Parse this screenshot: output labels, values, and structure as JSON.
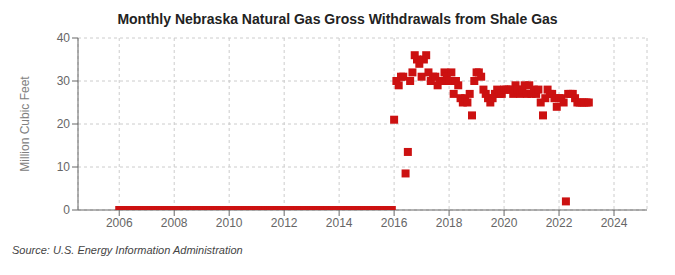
{
  "chart_data": {
    "type": "scatter",
    "title": "Monthly Nebraska Natural Gas Gross Withdrawals from Shale Gas",
    "ylabel": "Million Cubic Feet",
    "source": "Source: U.S. Energy Information Administration",
    "color": "#cc1111",
    "marker": "square",
    "grid": true,
    "xlim": [
      2004.5,
      2025.2
    ],
    "xticks": [
      2006,
      2008,
      2010,
      2012,
      2014,
      2016,
      2018,
      2020,
      2022,
      2024
    ],
    "ylim": [
      0,
      40
    ],
    "yticks": [
      0,
      10,
      20,
      30,
      40
    ],
    "x": [
      2006.0,
      2006.083,
      2006.167,
      2006.25,
      2006.333,
      2006.417,
      2006.5,
      2006.583,
      2006.667,
      2006.75,
      2006.833,
      2006.917,
      2007.0,
      2007.083,
      2007.167,
      2007.25,
      2007.333,
      2007.417,
      2007.5,
      2007.583,
      2007.667,
      2007.75,
      2007.833,
      2007.917,
      2008.0,
      2008.083,
      2008.167,
      2008.25,
      2008.333,
      2008.417,
      2008.5,
      2008.583,
      2008.667,
      2008.75,
      2008.833,
      2008.917,
      2009.0,
      2009.083,
      2009.167,
      2009.25,
      2009.333,
      2009.417,
      2009.5,
      2009.583,
      2009.667,
      2009.75,
      2009.833,
      2009.917,
      2010.0,
      2010.083,
      2010.167,
      2010.25,
      2010.333,
      2010.417,
      2010.5,
      2010.583,
      2010.667,
      2010.75,
      2010.833,
      2010.917,
      2011.0,
      2011.083,
      2011.167,
      2011.25,
      2011.333,
      2011.417,
      2011.5,
      2011.583,
      2011.667,
      2011.75,
      2011.833,
      2011.917,
      2012.0,
      2012.083,
      2012.167,
      2012.25,
      2012.333,
      2012.417,
      2012.5,
      2012.583,
      2012.667,
      2012.75,
      2012.833,
      2012.917,
      2013.0,
      2013.083,
      2013.167,
      2013.25,
      2013.333,
      2013.417,
      2013.5,
      2013.583,
      2013.667,
      2013.75,
      2013.833,
      2013.917,
      2014.0,
      2014.083,
      2014.167,
      2014.25,
      2014.333,
      2014.417,
      2014.5,
      2014.583,
      2014.667,
      2014.75,
      2014.833,
      2014.917,
      2015.0,
      2015.083,
      2015.167,
      2015.25,
      2015.333,
      2015.417,
      2015.5,
      2015.583,
      2015.667,
      2015.75,
      2015.833,
      2015.917,
      2016.0,
      2016.083,
      2016.167,
      2016.25,
      2016.333,
      2016.417,
      2016.5,
      2016.583,
      2016.667,
      2016.75,
      2016.833,
      2016.917,
      2017.0,
      2017.083,
      2017.167,
      2017.25,
      2017.333,
      2017.417,
      2017.5,
      2017.583,
      2017.667,
      2017.75,
      2017.833,
      2017.917,
      2018.0,
      2018.083,
      2018.167,
      2018.25,
      2018.333,
      2018.417,
      2018.5,
      2018.583,
      2018.667,
      2018.75,
      2018.833,
      2018.917,
      2019.0,
      2019.083,
      2019.167,
      2019.25,
      2019.333,
      2019.417,
      2019.5,
      2019.583,
      2019.667,
      2019.75,
      2019.833,
      2019.917,
      2020.0,
      2020.083,
      2020.167,
      2020.25,
      2020.333,
      2020.417,
      2020.5,
      2020.583,
      2020.667,
      2020.75,
      2020.833,
      2020.917,
      2021.0,
      2021.083,
      2021.167,
      2021.25,
      2021.333,
      2021.417,
      2021.5,
      2021.583,
      2021.667,
      2021.75,
      2021.833,
      2021.917,
      2022.0,
      2022.083,
      2022.167,
      2022.25,
      2022.333,
      2022.417,
      2022.5,
      2022.583,
      2022.667,
      2022.75,
      2022.833,
      2022.917,
      2023.0,
      2023.083
    ],
    "values": [
      0.0,
      0.0,
      0.0,
      0.0,
      0.0,
      0.0,
      0.0,
      0.0,
      0.0,
      0.0,
      0.0,
      0.0,
      0.0,
      0.0,
      0.0,
      0.0,
      0.0,
      0.0,
      0.0,
      0.0,
      0.0,
      0.0,
      0.0,
      0.0,
      0.0,
      0.0,
      0.0,
      0.0,
      0.0,
      0.0,
      0.0,
      0.0,
      0.0,
      0.0,
      0.0,
      0.0,
      0.0,
      0.0,
      0.0,
      0.0,
      0.0,
      0.0,
      0.0,
      0.0,
      0.0,
      0.0,
      0.0,
      0.0,
      0.0,
      0.0,
      0.0,
      0.0,
      0.0,
      0.0,
      0.0,
      0.0,
      0.0,
      0.0,
      0.0,
      0.0,
      0.0,
      0.0,
      0.0,
      0.0,
      0.0,
      0.0,
      0.0,
      0.0,
      0.0,
      0.0,
      0.0,
      0.0,
      0.0,
      0.0,
      0.0,
      0.0,
      0.0,
      0.0,
      0.0,
      0.0,
      0.0,
      0.0,
      0.0,
      0.0,
      0.0,
      0.0,
      0.0,
      0.0,
      0.0,
      0.0,
      0.0,
      0.0,
      0.0,
      0.0,
      0.0,
      0.0,
      0.0,
      0.0,
      0.0,
      0.0,
      0.0,
      0.0,
      0.0,
      0.0,
      0.0,
      0.0,
      0.0,
      0.0,
      0.0,
      0.0,
      0.0,
      0.0,
      0.0,
      0.0,
      0.0,
      0.0,
      0.0,
      0.0,
      0.0,
      0.0,
      21.0,
      30.0,
      29.0,
      31.0,
      31.0,
      8.5,
      13.5,
      30.0,
      32.0,
      36.0,
      35.0,
      34.0,
      31.0,
      35.0,
      36.0,
      32.0,
      30.0,
      31.0,
      31.0,
      29.0,
      30.0,
      30.0,
      32.0,
      31.0,
      30.0,
      32.0,
      27.0,
      30.0,
      29.0,
      26.0,
      25.0,
      26.0,
      25.0,
      27.0,
      22.0,
      30.0,
      32.0,
      32.0,
      31.0,
      28.0,
      27.0,
      26.0,
      25.0,
      26.0,
      27.0,
      28.0,
      27.0,
      27.0,
      28.0,
      28.0,
      28.0,
      28.0,
      27.0,
      29.0,
      28.0,
      27.0,
      28.0,
      29.0,
      27.0,
      29.0,
      27.0,
      28.0,
      27.0,
      28.0,
      25.0,
      22.0,
      26.0,
      28.0,
      27.0,
      27.0,
      26.0,
      24.0,
      26.0,
      26.0,
      25.0,
      2.0,
      27.0,
      27.0,
      27.0,
      26.0,
      25.0,
      25.0,
      25.0,
      25.0,
      25.0,
      25.0
    ]
  }
}
